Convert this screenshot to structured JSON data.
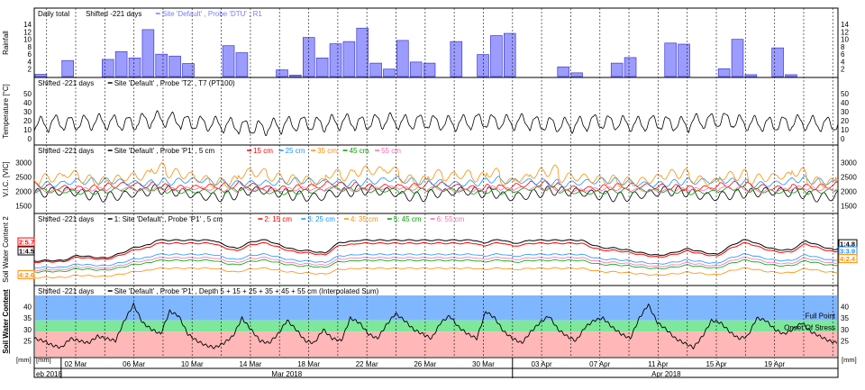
{
  "chart_data": [
    {
      "type": "bar",
      "title_parts": [
        "Daily total",
        "Shifted -221 days"
      ],
      "legend": [
        {
          "name": "Site 'Default' , Probe 'DTU' , R1",
          "color": "#7b7bff"
        }
      ],
      "ylabel": "Rainfall",
      "ylim": [
        0,
        15
      ],
      "yticks": [
        2,
        4,
        6,
        8,
        10,
        12,
        14
      ],
      "values": [
        0.6,
        0,
        4.3,
        0,
        0,
        4.6,
        6.7,
        5.0,
        12.6,
        6.0,
        5.5,
        3.5,
        0,
        0,
        8.3,
        6.4,
        0,
        0,
        1.8,
        0.4,
        10.5,
        5.0,
        8.8,
        9.4,
        13.0,
        3.6,
        2.0,
        9.7,
        3.9,
        3.6,
        0,
        9.4,
        0,
        5.9,
        11.0,
        11.6,
        0,
        0,
        0,
        2.6,
        1.0,
        0,
        0,
        3.6,
        5.1,
        0,
        0,
        9.0,
        8.7,
        0,
        0,
        2.1,
        10.0,
        0.5,
        0,
        7.7,
        0.5,
        0,
        0,
        0
      ]
    },
    {
      "type": "line",
      "title_parts": [
        "Shifted -221 days"
      ],
      "legend": [
        {
          "name": "Site 'Default' , Probe 'T2' , T7 (PT100)",
          "color": "#000000"
        }
      ],
      "ylabel": "Temperature [°C]",
      "ylim": [
        -5,
        55
      ],
      "yticks": [
        0,
        10,
        20,
        30,
        40,
        50
      ],
      "series": [
        {
          "name": "T7 (PT100)",
          "color": "#000000",
          "mean": 17,
          "amplitude": 9,
          "period": 1,
          "profile": [
            16,
            18,
            17,
            18,
            19,
            18,
            17,
            20,
            22,
            21,
            18,
            17,
            16,
            15,
            13,
            12,
            14,
            16,
            17,
            16,
            18,
            19,
            17,
            19,
            20,
            18,
            19,
            18,
            17,
            18,
            20,
            19,
            18,
            19,
            17,
            16,
            15,
            16,
            19,
            18,
            17,
            16,
            18,
            17,
            16,
            19,
            20,
            21,
            18,
            17,
            16,
            17,
            18,
            17,
            16,
            17,
            18,
            17,
            16,
            18
          ]
        }
      ]
    },
    {
      "type": "line",
      "title_parts": [
        "Shifted -221 days"
      ],
      "legend": [
        {
          "name": "Site 'Default' , Probe 'P1' , 5 cm",
          "color": "#000000"
        },
        {
          "name": "15 cm",
          "color": "#ff0000"
        },
        {
          "name": "25 cm",
          "color": "#1e90ff"
        },
        {
          "name": "35 cm",
          "color": "#ff8c00"
        },
        {
          "name": "45 cm",
          "color": "#00a000"
        },
        {
          "name": "55 cm",
          "color": "#ff69b4"
        }
      ],
      "ylabel": "V.I.C. [VIC]",
      "ylim": [
        1300,
        3200
      ],
      "yticks": [
        1500,
        2000,
        2500,
        3000
      ],
      "series": [
        {
          "name": "5 cm",
          "color": "#000000",
          "mean": 1900,
          "amplitude": 280,
          "period": 1
        },
        {
          "name": "15 cm",
          "color": "#ff0000",
          "mean": 2150,
          "amplitude": 160,
          "period": 1
        },
        {
          "name": "25 cm",
          "color": "#1e90ff",
          "mean": 2300,
          "amplitude": 180,
          "period": 1
        },
        {
          "name": "35 cm",
          "color": "#ff8c00",
          "mean": 2400,
          "amplitude": 280,
          "period": 1
        },
        {
          "name": "45 cm",
          "color": "#00a000",
          "mean": 2000,
          "amplitude": 120,
          "period": 1
        },
        {
          "name": "55 cm",
          "color": "#ff69b4",
          "mean": 2050,
          "amplitude": 100,
          "period": 1
        }
      ]
    },
    {
      "type": "line",
      "title_parts": [
        "Shifted -221 days"
      ],
      "legend": [
        {
          "name": "1: Site 'Default' , Probe 'P1' , 5 cm",
          "color": "#000000"
        },
        {
          "name": "2: 15 cm",
          "color": "#ff0000"
        },
        {
          "name": "3: 25 cm",
          "color": "#1e90ff"
        },
        {
          "name": "4: 35 cm",
          "color": "#ff8c00"
        },
        {
          "name": "5: 45 cm",
          "color": "#00a000"
        },
        {
          "name": "6: 55 cm",
          "color": "#ff69b4"
        }
      ],
      "ylabel": "Soil Water Content 2",
      "series": [
        {
          "name": "5 cm",
          "color": "#000000",
          "base": 0.62,
          "peak": 0.22
        },
        {
          "name": "15 cm",
          "color": "#ff0000",
          "base": 0.64,
          "peak": 0.2
        },
        {
          "name": "25 cm",
          "color": "#1e90ff",
          "base": 0.73,
          "peak": 0.14
        },
        {
          "name": "35 cm",
          "color": "#ff8c00",
          "base": 0.9,
          "peak": 0.1
        },
        {
          "name": "45 cm",
          "color": "#00a000",
          "base": 0.8,
          "peak": 0.12
        },
        {
          "name": "55 cm",
          "color": "#ff69b4",
          "base": 0.77,
          "peak": 0.13
        }
      ],
      "left_labels": [
        {
          "text": "2:5.7",
          "color": "#ff0000"
        },
        {
          "text": "1:4.5",
          "color": "#000000"
        },
        {
          "text": "4:2.6",
          "color": "#ff8c00"
        }
      ],
      "right_labels": [
        {
          "text": "1:4.8",
          "color": "#000000"
        },
        {
          "text": "3:3.9",
          "color": "#1e90ff"
        },
        {
          "text": "4:2.4",
          "color": "#ff8c00"
        }
      ]
    },
    {
      "type": "line",
      "title_parts": [
        "Shifted -221 days"
      ],
      "legend": [
        {
          "name": "Site 'Default' , Probe 'P1' , Depth 5 + 15 + 25 + 35 + 45 + 55 cm (Interpolated Sum)",
          "color": "#000000"
        }
      ],
      "ylabel": "Soil Water Content",
      "unit": "[mm]",
      "ylim": [
        18,
        45
      ],
      "yticks": [
        25,
        30,
        35,
        40
      ],
      "bands": [
        {
          "label": "Full Point",
          "from": 34,
          "to": 45,
          "color": "#7fb7ff"
        },
        {
          "label": "Onset Of Stress",
          "from": 29,
          "to": 34,
          "color": "#7de89a"
        },
        {
          "label": "",
          "from": 18,
          "to": 29,
          "color": "#ffb7b7"
        }
      ],
      "series": [
        {
          "name": "Interpolated Sum",
          "color": "#000000",
          "values": [
            26,
            25,
            23,
            22,
            26,
            25,
            24,
            27,
            26,
            25,
            34,
            41,
            33,
            30,
            28,
            38,
            36,
            28,
            25,
            23,
            22,
            24,
            27,
            35,
            30,
            25,
            24,
            28,
            34,
            30,
            25,
            24,
            30,
            26,
            25,
            35,
            33,
            28,
            26,
            32,
            37,
            34,
            30,
            28,
            26,
            33,
            36,
            31,
            28,
            26,
            38,
            35,
            29,
            26,
            24,
            29,
            33,
            36,
            30,
            27,
            25,
            31,
            34,
            35,
            31,
            28,
            26,
            35,
            41,
            33,
            30,
            26,
            24,
            22,
            27,
            34,
            33,
            29,
            26,
            27,
            35,
            34,
            30,
            28,
            30,
            33,
            29,
            27,
            25,
            24
          ]
        }
      ]
    }
  ],
  "x_axis": {
    "unit_left": "[mm]",
    "unit_right": "[mm]",
    "day_ticks": [
      "02 Mar",
      "06 Mar",
      "10 Mar",
      "14 Mar",
      "18 Mar",
      "22 Mar",
      "26 Mar",
      "30 Mar",
      "03 Apr",
      "07 Apr",
      "11 Apr",
      "15 Apr",
      "19 Apr"
    ],
    "months": [
      "eb 2018",
      "Mar 2018",
      "Apr 2018"
    ]
  }
}
